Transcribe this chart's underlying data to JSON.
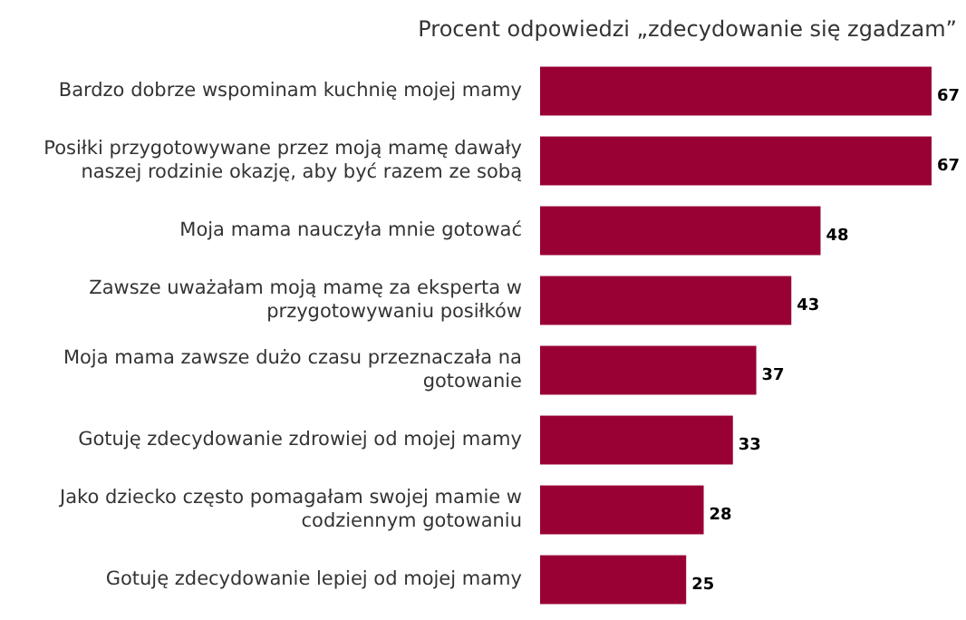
{
  "chart_data": {
    "type": "bar",
    "orientation": "horizontal",
    "title": "Procent odpowiedzi „zdecydowanie się zgadzam”",
    "categories": [
      "Bardzo dobrze wspominam kuchnię mojej mamy",
      "Posiłki przygotowywane przez moją mamę dawały naszej rodzinie okazję, aby być razem ze sobą",
      "Moja mama nauczyła mnie gotować",
      "Zawsze uważałam moją mamę za eksperta w przygotowywaniu posiłków",
      "Moja mama zawsze dużo czasu przeznaczała na gotowanie",
      "Gotuję zdecydowanie zdrowiej od mojej mamy",
      "Jako dziecko często pomagałam swojej mamie w codziennym gotowaniu",
      "Gotuję zdecydowanie lepiej od mojej mamy"
    ],
    "values": [
      67,
      67,
      48,
      43,
      37,
      33,
      28,
      25
    ],
    "color": "#990033",
    "data_labels": true
  }
}
